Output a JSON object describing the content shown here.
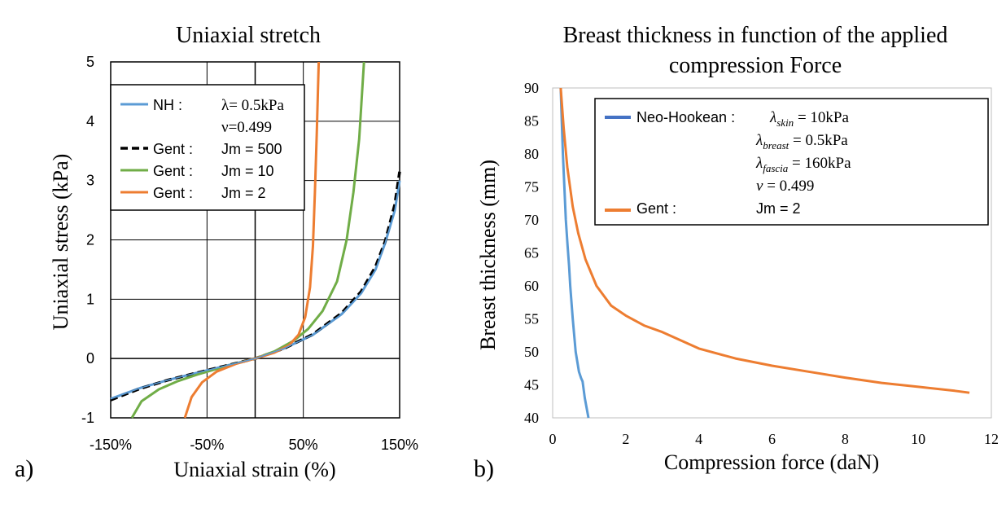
{
  "panels": [
    {
      "label": "a)"
    },
    {
      "label": "b)"
    }
  ],
  "chart_data": [
    {
      "type": "line",
      "title": "Uniaxial stretch",
      "xlabel": "Uniaxial strain (%)",
      "ylabel": "Uniaxial stress (kPa)",
      "xlim": [
        -150,
        150
      ],
      "ylim": [
        -1,
        5
      ],
      "x_ticks": [
        -150,
        -50,
        50,
        150
      ],
      "x_tick_labels": [
        "-150%",
        "-50%",
        "50%",
        "150%"
      ],
      "y_ticks": [
        -1,
        0,
        1,
        2,
        3,
        4,
        5
      ],
      "y_tick_labels": [
        "-1",
        "0",
        "1",
        "2",
        "3",
        "4",
        "5"
      ],
      "grid": true,
      "legend": {
        "placement": "top-left",
        "entries": [
          {
            "series": "NH",
            "lines": [
              "NH :",
              "λ= 0.5kPa",
              "ν=0.499"
            ]
          },
          {
            "series": "Gent Jm = 500",
            "lines": [
              "Gent :",
              "Jm = 500"
            ]
          },
          {
            "series": "Gent Jm = 10",
            "lines": [
              "Gent :",
              "Jm = 10"
            ]
          },
          {
            "series": "Gent Jm = 2",
            "lines": [
              "Gent :",
              "Jm = 2"
            ]
          }
        ]
      },
      "series": [
        {
          "name": "NH",
          "color": "#5b9bd5",
          "dash": "solid",
          "points": [
            [
              -150,
              -0.68
            ],
            [
              -120,
              -0.5
            ],
            [
              -90,
              -0.36
            ],
            [
              -60,
              -0.24
            ],
            [
              -30,
              -0.12
            ],
            [
              0,
              0
            ],
            [
              30,
              0.17
            ],
            [
              60,
              0.4
            ],
            [
              90,
              0.75
            ],
            [
              110,
              1.1
            ],
            [
              125,
              1.5
            ],
            [
              135,
              1.95
            ],
            [
              145,
              2.5
            ],
            [
              150,
              3.0
            ]
          ]
        },
        {
          "name": "Gent Jm = 500",
          "color": "#000000",
          "dash": "dashed",
          "points": [
            [
              -150,
              -0.7
            ],
            [
              -120,
              -0.51
            ],
            [
              -90,
              -0.36
            ],
            [
              -60,
              -0.24
            ],
            [
              -30,
              -0.12
            ],
            [
              0,
              0
            ],
            [
              30,
              0.17
            ],
            [
              60,
              0.41
            ],
            [
              90,
              0.77
            ],
            [
              110,
              1.13
            ],
            [
              125,
              1.55
            ],
            [
              135,
              1.98
            ],
            [
              145,
              2.6
            ],
            [
              150,
              3.15
            ]
          ]
        },
        {
          "name": "Gent Jm = 10",
          "color": "#70ad47",
          "dash": "solid",
          "points": [
            [
              -128,
              -1.0
            ],
            [
              -118,
              -0.72
            ],
            [
              -100,
              -0.52
            ],
            [
              -80,
              -0.38
            ],
            [
              -60,
              -0.27
            ],
            [
              -30,
              -0.13
            ],
            [
              0,
              0
            ],
            [
              20,
              0.12
            ],
            [
              40,
              0.3
            ],
            [
              55,
              0.5
            ],
            [
              70,
              0.8
            ],
            [
              85,
              1.3
            ],
            [
              95,
              2.0
            ],
            [
              102,
              2.8
            ],
            [
              108,
              3.7
            ],
            [
              113,
              5.0
            ]
          ]
        },
        {
          "name": "Gent Jm = 2",
          "color": "#ed7d31",
          "dash": "solid",
          "points": [
            [
              -73,
              -1.0
            ],
            [
              -66,
              -0.65
            ],
            [
              -55,
              -0.4
            ],
            [
              -40,
              -0.22
            ],
            [
              -20,
              -0.09
            ],
            [
              0,
              0
            ],
            [
              20,
              0.1
            ],
            [
              35,
              0.22
            ],
            [
              45,
              0.4
            ],
            [
              52,
              0.7
            ],
            [
              57,
              1.2
            ],
            [
              60,
              1.9
            ],
            [
              62,
              2.8
            ],
            [
              64,
              3.8
            ],
            [
              66,
              5.0
            ]
          ]
        }
      ]
    },
    {
      "type": "line",
      "title": "Breast thickness in function of the applied compression Force",
      "title_lines": [
        "Breast thickness in function of the applied",
        "compression Force"
      ],
      "xlabel": "Compression force (daN)",
      "ylabel": "Breast thickness (mm)",
      "xlim": [
        0,
        12
      ],
      "ylim": [
        40,
        90
      ],
      "x_ticks": [
        0,
        2,
        4,
        6,
        8,
        10,
        12
      ],
      "x_tick_labels": [
        "0",
        "2",
        "4",
        "6",
        "8",
        "10",
        "12"
      ],
      "y_ticks": [
        40,
        45,
        50,
        55,
        60,
        65,
        70,
        75,
        80,
        85,
        90
      ],
      "y_tick_labels": [
        "40",
        "45",
        "50",
        "55",
        "60",
        "65",
        "70",
        "75",
        "80",
        "85",
        "90"
      ],
      "grid": false,
      "legend": {
        "placement": "top-right",
        "entries": [
          {
            "series": "Neo-Hookean",
            "label": "Neo-Hookean :",
            "params": [
              {
                "symbol": "λ",
                "sub": "skin",
                "rest": " = 10kPa"
              },
              {
                "symbol": "λ",
                "sub": "breast",
                "rest": " = 0.5kPa"
              },
              {
                "symbol": "λ",
                "sub": "fascia",
                "rest": " = 160kPa"
              },
              {
                "symbol": "ν",
                "sub": "",
                "rest": " = 0.499"
              }
            ]
          },
          {
            "series": "Gent",
            "label": "Gent :",
            "value": "Jm = 2"
          }
        ]
      },
      "series": [
        {
          "name": "Neo-Hookean",
          "color": "#5b9bd5",
          "dash": "solid",
          "points": [
            [
              0.22,
              90
            ],
            [
              0.25,
              85
            ],
            [
              0.28,
              80
            ],
            [
              0.32,
              75
            ],
            [
              0.36,
              70
            ],
            [
              0.41,
              66
            ],
            [
              0.45,
              63
            ],
            [
              0.48,
              60
            ],
            [
              0.55,
              55
            ],
            [
              0.63,
              50
            ],
            [
              0.72,
              47
            ],
            [
              0.78,
              46
            ],
            [
              0.82,
              45.5
            ],
            [
              0.88,
              43
            ],
            [
              0.98,
              40
            ]
          ]
        },
        {
          "name": "Gent",
          "color": "#ed7d31",
          "dash": "solid",
          "points": [
            [
              0.22,
              90
            ],
            [
              0.3,
              84
            ],
            [
              0.4,
              78
            ],
            [
              0.55,
              72
            ],
            [
              0.7,
              68
            ],
            [
              0.9,
              64
            ],
            [
              1.2,
              60
            ],
            [
              1.6,
              57
            ],
            [
              2.0,
              55.5
            ],
            [
              2.5,
              54
            ],
            [
              3.0,
              53
            ],
            [
              4.0,
              50.5
            ],
            [
              5.0,
              49
            ],
            [
              6.0,
              47.9
            ],
            [
              7.0,
              47
            ],
            [
              8.0,
              46.1
            ],
            [
              9.0,
              45.3
            ],
            [
              10.0,
              44.7
            ],
            [
              11.0,
              44.1
            ],
            [
              11.4,
              43.8
            ]
          ]
        }
      ]
    }
  ]
}
